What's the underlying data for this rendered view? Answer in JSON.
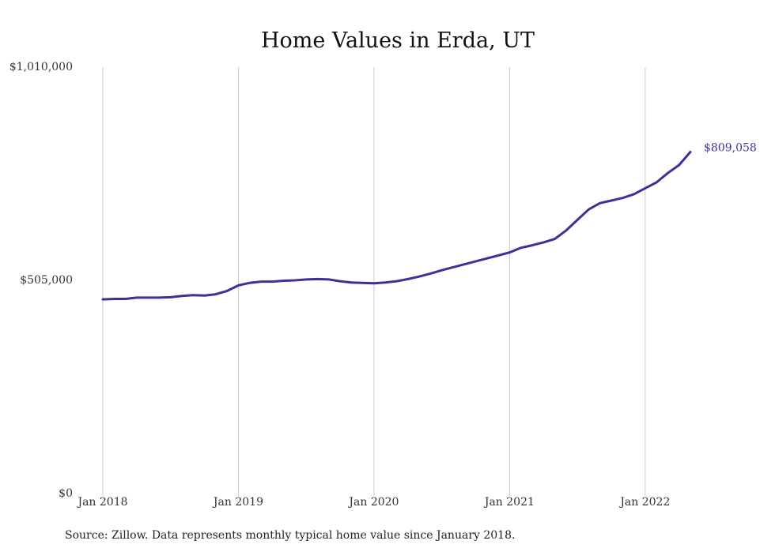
{
  "chart_data": {
    "type": "line",
    "title": "Home Values in Erda, UT",
    "xlabel": "",
    "ylabel": "",
    "x_range": [
      "2018-01",
      "2022-05"
    ],
    "ylim": [
      0,
      1010000
    ],
    "y_ticks": [
      {
        "value": 0,
        "label": "$0"
      },
      {
        "value": 505000,
        "label": "$505,000"
      },
      {
        "value": 1010000,
        "label": "$1,010,000"
      }
    ],
    "x_ticks": [
      {
        "value": "2018-01",
        "label": "Jan 2018"
      },
      {
        "value": "2019-01",
        "label": "Jan 2019"
      },
      {
        "value": "2020-01",
        "label": "Jan 2020"
      },
      {
        "value": "2021-01",
        "label": "Jan 2021"
      },
      {
        "value": "2022-01",
        "label": "Jan 2022"
      }
    ],
    "grid": {
      "vertical": true,
      "horizontal": false
    },
    "series": [
      {
        "color": "#3b3299",
        "x": [
          "2018-01",
          "2018-02",
          "2018-03",
          "2018-04",
          "2018-05",
          "2018-06",
          "2018-07",
          "2018-08",
          "2018-09",
          "2018-10",
          "2018-11",
          "2018-12",
          "2019-01",
          "2019-02",
          "2019-03",
          "2019-04",
          "2019-05",
          "2019-06",
          "2019-07",
          "2019-08",
          "2019-09",
          "2019-10",
          "2019-11",
          "2019-12",
          "2020-01",
          "2020-02",
          "2020-03",
          "2020-04",
          "2020-05",
          "2020-06",
          "2020-07",
          "2020-08",
          "2020-09",
          "2020-10",
          "2020-11",
          "2020-12",
          "2021-01",
          "2021-02",
          "2021-03",
          "2021-04",
          "2021-05",
          "2021-06",
          "2021-07",
          "2021-08",
          "2021-09",
          "2021-10",
          "2021-11",
          "2021-12",
          "2022-01",
          "2022-02",
          "2022-03",
          "2022-04",
          "2022-05"
        ],
        "values": [
          460000,
          461000,
          461000,
          464000,
          464000,
          464000,
          465000,
          468000,
          470000,
          469000,
          472000,
          480000,
          493000,
          499000,
          502000,
          502000,
          504000,
          505000,
          507000,
          508000,
          507000,
          503000,
          500000,
          499000,
          498000,
          500000,
          503000,
          508000,
          514000,
          521000,
          529000,
          536000,
          543000,
          550000,
          557000,
          564000,
          571000,
          582000,
          588000,
          595000,
          603000,
          623000,
          648000,
          673000,
          688000,
          694000,
          700000,
          709000,
          723000,
          737000,
          759000,
          778000,
          809058
        ]
      }
    ],
    "annotations": [
      {
        "x": "2022-05",
        "y": 809058,
        "text": "$809,058"
      }
    ]
  },
  "source_note": "Source: Zillow. Data represents monthly typical home value since January 2018."
}
